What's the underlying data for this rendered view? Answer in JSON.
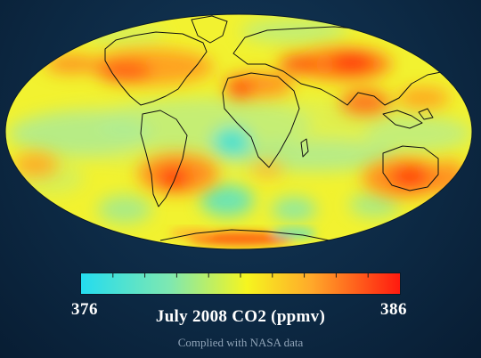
{
  "title": "July 2008 CO2 (ppmv)",
  "credit": "Complied with NASA data",
  "scale": {
    "min": "376",
    "max": "386"
  },
  "colors": {
    "low": "#24dcef",
    "mid_low": "#7fe8b0",
    "mid": "#f6f51f",
    "mid_high": "#ffaa2a",
    "high": "#ff1a0f",
    "coastline": "#111111"
  }
}
